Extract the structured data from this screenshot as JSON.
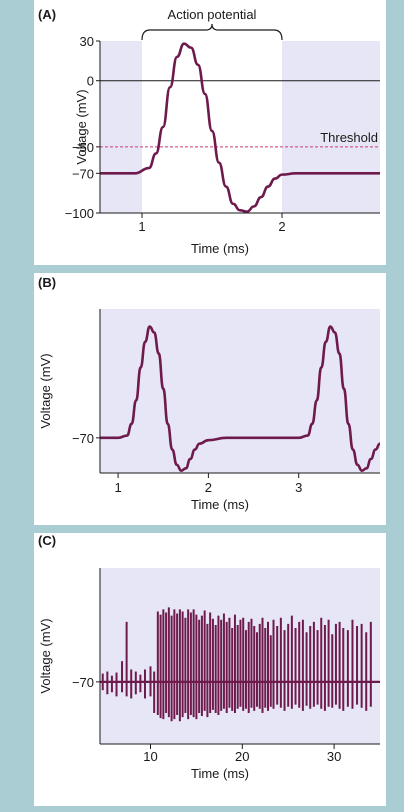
{
  "colors": {
    "background": "#a9cdd3",
    "panel": "#ffffff",
    "plot_shade": "#e7e6f7",
    "trace": "#6e1a4c",
    "threshold": "#d0387a",
    "axis": "#1a1a1a"
  },
  "chart_data": [
    {
      "panel_label": "(A)",
      "type": "line",
      "xlabel": "Time (ms)",
      "ylabel": "Voltage (mV)",
      "xlim": [
        0.7,
        2.7
      ],
      "ylim": [
        -100,
        30
      ],
      "x_ticks": [
        1,
        2
      ],
      "y_ticks": [
        30,
        0,
        -50,
        -70,
        -100
      ],
      "y_tick_labels": [
        "30",
        "0",
        "−50",
        "−70",
        "−100"
      ],
      "shaded_x_ranges": [
        [
          0.7,
          1.0
        ],
        [
          2.0,
          2.7
        ]
      ],
      "reference_lines": [
        {
          "y": 0,
          "style": "solid",
          "label": ""
        },
        {
          "y": -50,
          "style": "dashed",
          "label": "Threshold"
        }
      ],
      "bracket": {
        "x_start": 1.0,
        "x_end": 2.0,
        "label": "Action potential"
      },
      "series": [
        {
          "x": [
            0.7,
            0.95,
            1.05,
            1.1,
            1.15,
            1.2,
            1.25,
            1.3,
            1.35,
            1.4,
            1.45,
            1.5,
            1.55,
            1.6,
            1.65,
            1.7,
            1.75,
            1.8,
            1.85,
            1.9,
            1.95,
            2.0,
            2.1,
            2.3,
            2.7
          ],
          "values": [
            -70,
            -70,
            -66,
            -55,
            -35,
            -5,
            18,
            28,
            25,
            12,
            -10,
            -38,
            -62,
            -80,
            -93,
            -98,
            -99,
            -95,
            -88,
            -80,
            -74,
            -71,
            -70,
            -70,
            -70
          ]
        }
      ]
    },
    {
      "panel_label": "(B)",
      "type": "line",
      "xlabel": "Time (ms)",
      "ylabel": "Voltage (mV)",
      "xlim": [
        0.8,
        3.9
      ],
      "ylim": [
        -100,
        40
      ],
      "x_ticks": [
        1,
        2,
        3
      ],
      "y_ticks": [
        -70
      ],
      "y_tick_labels": [
        "−70"
      ],
      "shaded_x_ranges": [
        [
          0.8,
          3.9
        ]
      ],
      "series": [
        {
          "x": [
            0.8,
            1.0,
            1.1,
            1.15,
            1.2,
            1.25,
            1.3,
            1.35,
            1.4,
            1.45,
            1.5,
            1.55,
            1.6,
            1.65,
            1.7,
            1.75,
            1.8,
            1.85,
            1.9,
            2.0,
            2.2,
            3.0,
            3.1,
            3.15,
            3.2,
            3.25,
            3.3,
            3.35,
            3.4,
            3.45,
            3.5,
            3.55,
            3.6,
            3.65,
            3.7,
            3.75,
            3.8,
            3.85,
            3.9
          ],
          "values": [
            -70,
            -70,
            -68,
            -58,
            -38,
            -10,
            12,
            25,
            20,
            2,
            -28,
            -58,
            -80,
            -93,
            -98,
            -96,
            -88,
            -80,
            -75,
            -72,
            -70,
            -70,
            -68,
            -58,
            -38,
            -10,
            12,
            25,
            20,
            2,
            -28,
            -58,
            -80,
            -93,
            -98,
            -96,
            -88,
            -80,
            -75
          ]
        }
      ]
    },
    {
      "panel_label": "(C)",
      "type": "line",
      "xlabel": "Time (ms)",
      "ylabel": "Voltage (mV)",
      "xlim": [
        4.5,
        35
      ],
      "ylim": [
        -130,
        40
      ],
      "x_ticks": [
        10,
        20,
        30
      ],
      "y_ticks": [
        -70
      ],
      "y_tick_labels": [
        "−70"
      ],
      "shaded_x_ranges": [
        [
          4.5,
          35
        ]
      ],
      "baseline": -70,
      "spikes": {
        "x": [
          4.8,
          5.3,
          5.8,
          6.3,
          6.9,
          7.4,
          7.9,
          8.4,
          8.9,
          9.4,
          10.0,
          10.4,
          10.8,
          11.1,
          11.4,
          11.7,
          12.0,
          12.3,
          12.6,
          12.9,
          13.2,
          13.5,
          13.8,
          14.1,
          14.4,
          14.7,
          15.0,
          15.3,
          15.6,
          15.9,
          16.2,
          16.5,
          16.8,
          17.1,
          17.4,
          17.7,
          18.0,
          18.3,
          18.6,
          18.9,
          19.2,
          19.5,
          19.8,
          20.1,
          20.4,
          20.7,
          21.0,
          21.3,
          21.6,
          21.9,
          22.2,
          22.5,
          22.8,
          23.1,
          23.4,
          23.8,
          24.2,
          24.6,
          25.0,
          25.4,
          25.8,
          26.2,
          26.6,
          27.0,
          27.4,
          27.8,
          28.2,
          28.6,
          29.0,
          29.4,
          29.8,
          30.2,
          30.6,
          31.0,
          31.5,
          32.0,
          32.5,
          33.0,
          33.5,
          34.0
        ],
        "top": [
          -62,
          -60,
          -64,
          -61,
          -50,
          -12,
          -58,
          -60,
          -63,
          -58,
          -55,
          -60,
          -2,
          -5,
          0,
          -3,
          2,
          -6,
          0,
          -4,
          0,
          -2,
          -8,
          0,
          -3,
          0,
          -5,
          -10,
          -6,
          -1,
          -14,
          -3,
          -9,
          -15,
          -6,
          -10,
          -4,
          -12,
          -8,
          -18,
          -5,
          -15,
          -10,
          -8,
          -20,
          -12,
          -9,
          -16,
          -22,
          -14,
          -8,
          -18,
          -12,
          -25,
          -10,
          -16,
          -8,
          -20,
          -14,
          -6,
          -18,
          -12,
          -10,
          -22,
          -16,
          -12,
          -20,
          -8,
          -15,
          -10,
          -24,
          -14,
          -12,
          -18,
          -20,
          -10,
          -16,
          -14,
          -22,
          -12
        ],
        "bottom": [
          -78,
          -82,
          -80,
          -84,
          -80,
          -84,
          -86,
          -82,
          -80,
          -86,
          -84,
          -100,
          -102,
          -105,
          -106,
          -100,
          -104,
          -108,
          -106,
          -102,
          -108,
          -104,
          -100,
          -106,
          -102,
          -104,
          -106,
          -100,
          -103,
          -98,
          -104,
          -100,
          -97,
          -100,
          -102,
          -98,
          -96,
          -100,
          -95,
          -98,
          -100,
          -96,
          -94,
          -98,
          -96,
          -100,
          -95,
          -98,
          -94,
          -96,
          -100,
          -95,
          -98,
          -94,
          -96,
          -92,
          -95,
          -98,
          -94,
          -96,
          -92,
          -95,
          -98,
          -93,
          -96,
          -94,
          -92,
          -96,
          -98,
          -94,
          -95,
          -92,
          -96,
          -98,
          -94,
          -96,
          -92,
          -95,
          -98,
          -94
        ]
      }
    }
  ]
}
